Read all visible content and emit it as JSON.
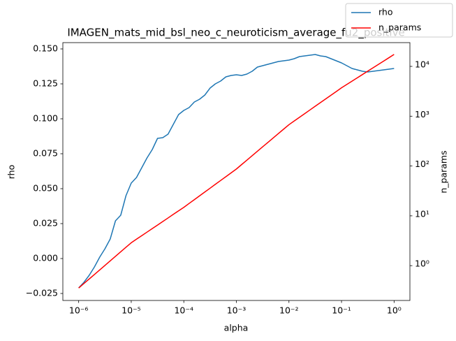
{
  "chart_data": {
    "type": "line",
    "title": "IMAGEN_mats_mid_bsl_neo_c_neuroticism_average_fu2_positive",
    "xlabel": "alpha",
    "ylabel": "rho",
    "y2label": "n_params",
    "xscale": "log",
    "y2scale": "log",
    "grid": false,
    "legend": "upper right",
    "x": [
      1e-06,
      1.259e-06,
      1.585e-06,
      1.995e-06,
      2.512e-06,
      3.162e-06,
      3.981e-06,
      5.012e-06,
      6.31e-06,
      7.943e-06,
      1e-05,
      1.259e-05,
      1.585e-05,
      1.995e-05,
      2.512e-05,
      3.162e-05,
      3.981e-05,
      5.012e-05,
      6.31e-05,
      7.943e-05,
      0.0001,
      0.0001259,
      0.0001585,
      0.0001995,
      0.0002512,
      0.0003162,
      0.0003981,
      0.0005012,
      0.000631,
      0.0007943,
      0.001,
      0.001259,
      0.001585,
      0.001995,
      0.002512,
      0.003162,
      0.003981,
      0.005012,
      0.00631,
      0.007943,
      0.01,
      0.01259,
      0.01585,
      0.01995,
      0.02512,
      0.03162,
      0.03981,
      0.05012,
      0.0631,
      0.07943,
      0.1,
      0.1259,
      0.1585,
      0.1995,
      0.2512,
      0.3162,
      0.3981,
      0.5012,
      0.631,
      0.7943,
      1
    ],
    "series": [
      {
        "name": "rho",
        "color": "#1f77b4",
        "axis": "y",
        "values": [
          -0.021,
          -0.017,
          -0.012,
          -0.006,
          0.001,
          0.007,
          0.014,
          0.027,
          0.031,
          0.045,
          0.054,
          0.058,
          0.065,
          0.072,
          0.078,
          0.086,
          0.0865,
          0.089,
          0.096,
          0.103,
          0.106,
          0.108,
          0.112,
          0.114,
          0.117,
          0.122,
          0.125,
          0.127,
          0.13,
          0.131,
          0.1315,
          0.131,
          0.132,
          0.134,
          0.137,
          0.138,
          0.139,
          0.14,
          0.141,
          0.1415,
          0.142,
          0.143,
          0.1445,
          0.145,
          0.1455,
          0.146,
          0.145,
          0.1445,
          0.143,
          0.1415,
          0.14,
          0.138,
          0.136,
          0.135,
          0.134,
          0.1335,
          0.134,
          0.1345,
          0.135,
          0.1355,
          0.136
        ]
      },
      {
        "name": "n_params",
        "color": "#ff0000",
        "axis": "y2",
        "values": [
          0.355,
          0.438,
          0.54,
          0.665,
          0.82,
          1.01,
          1.25,
          1.54,
          1.9,
          2.34,
          2.88,
          3.4,
          4.0,
          4.71,
          5.55,
          6.53,
          7.69,
          9.06,
          10.7,
          12.6,
          14.8,
          17.7,
          21.1,
          25.2,
          30.1,
          35.9,
          42.9,
          51.2,
          61.1,
          72.9,
          87.1,
          107,
          131,
          161,
          198,
          243,
          298,
          366,
          449,
          551,
          676,
          802,
          951,
          1127,
          1337,
          1585,
          1879,
          2228,
          2642,
          3133,
          3715,
          4335,
          5058,
          5902,
          6887,
          8035,
          9376,
          10940,
          12765,
          14894,
          17378
        ]
      }
    ],
    "xlim": [
      5e-07,
      2.0
    ],
    "xticks": [
      {
        "value": 1e-06,
        "label": "10⁻⁶"
      },
      {
        "value": 1e-05,
        "label": "10⁻⁵"
      },
      {
        "value": 0.0001,
        "label": "10⁻⁴"
      },
      {
        "value": 0.001,
        "label": "10⁻³"
      },
      {
        "value": 0.01,
        "label": "10⁻²"
      },
      {
        "value": 0.1,
        "label": "10⁻¹"
      },
      {
        "value": 1,
        "label": "10⁰"
      }
    ],
    "ylim": [
      -0.03,
      0.1545
    ],
    "yticks": [
      {
        "value": -0.025,
        "label": "−0.025"
      },
      {
        "value": 0,
        "label": "0.000"
      },
      {
        "value": 0.025,
        "label": "0.025"
      },
      {
        "value": 0.05,
        "label": "0.050"
      },
      {
        "value": 0.075,
        "label": "0.075"
      },
      {
        "value": 0.1,
        "label": "0.100"
      },
      {
        "value": 0.125,
        "label": "0.125"
      },
      {
        "value": 0.15,
        "label": "0.150"
      }
    ],
    "y2lim": [
      0.2,
      30000
    ],
    "y2ticks": [
      {
        "value": 1,
        "label": "10⁰"
      },
      {
        "value": 10,
        "label": "10¹"
      },
      {
        "value": 100,
        "label": "10²"
      },
      {
        "value": 1000,
        "label": "10³"
      },
      {
        "value": 10000,
        "label": "10⁴"
      }
    ]
  }
}
